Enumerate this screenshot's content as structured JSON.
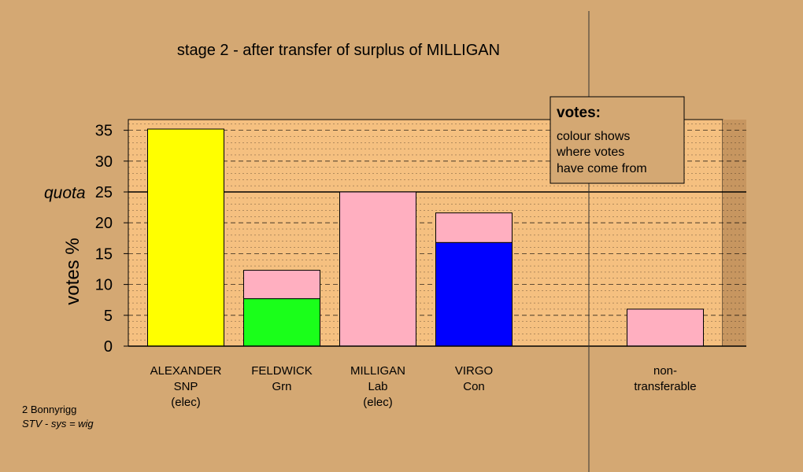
{
  "chart_data": {
    "type": "bar",
    "title": "stage 2 - after transfer of surplus of MILLIGAN",
    "ylabel": "votes %",
    "ylim": [
      0,
      37
    ],
    "yticks": [
      0,
      5,
      10,
      15,
      20,
      25,
      30,
      35
    ],
    "quota": {
      "label": "quota",
      "value": 25
    },
    "colors": {
      "background": "#d4a873",
      "plot_area": "#f5c080",
      "SNP": "#ffff00",
      "Grn": "#1aff1a",
      "Lab": "#ffafc0",
      "Con": "#0000ff"
    },
    "candidates": [
      {
        "name": "ALEXANDER",
        "party": "SNP",
        "status": "(elec)",
        "segments": [
          {
            "source": "SNP",
            "value": 35.2
          }
        ]
      },
      {
        "name": "FELDWICK",
        "party": "Grn",
        "status": "",
        "segments": [
          {
            "source": "Grn",
            "value": 7.7
          },
          {
            "source": "Lab",
            "value": 4.6
          }
        ]
      },
      {
        "name": "MILLIGAN",
        "party": "Lab",
        "status": "(elec)",
        "segments": [
          {
            "source": "Lab",
            "value": 25.0
          }
        ]
      },
      {
        "name": "VIRGO",
        "party": "Con",
        "status": "",
        "segments": [
          {
            "source": "Con",
            "value": 16.8
          },
          {
            "source": "Lab",
            "value": 4.8
          }
        ]
      }
    ],
    "non_transferable": {
      "label_line1": "non-",
      "label_line2": "transferable",
      "segments": [
        {
          "source": "Lab",
          "value": 6.0
        }
      ]
    },
    "legend": {
      "title": "votes:",
      "lines": [
        "colour shows",
        "where votes",
        "have come from"
      ],
      "placement": "top-right"
    }
  },
  "footer": {
    "ward": "2 Bonnyrigg",
    "system": "STV - sys = wig"
  }
}
